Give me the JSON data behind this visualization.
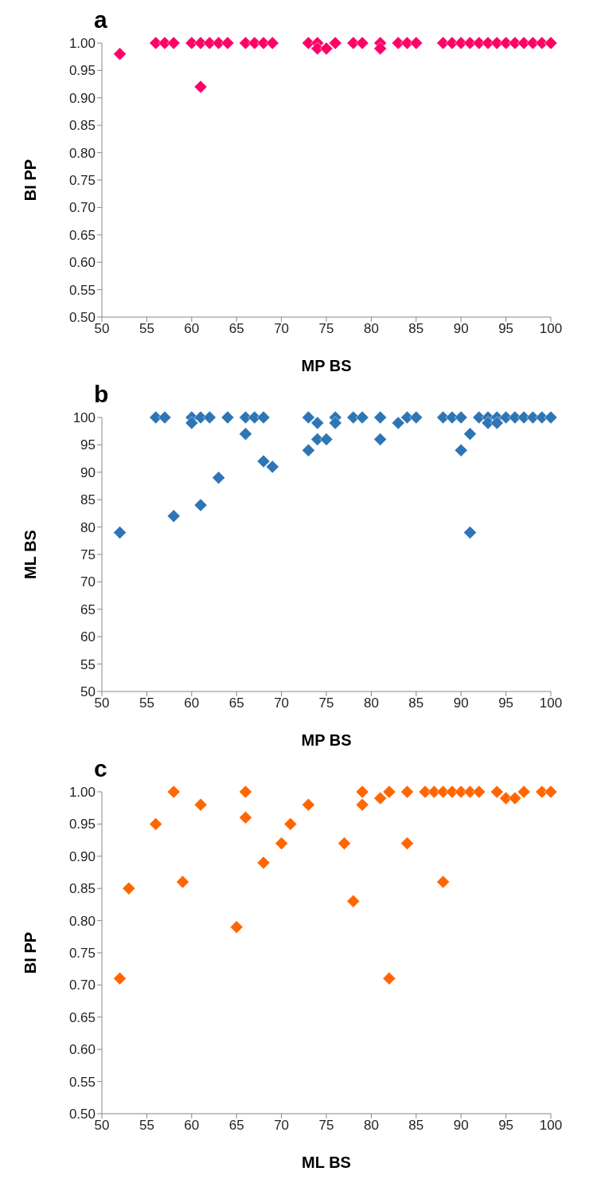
{
  "chart_data": [
    {
      "type": "scatter",
      "title": "a",
      "xlabel": "MP BS",
      "ylabel": "BI PP",
      "marker": "diamond",
      "grid": false,
      "xlim": [
        50,
        100
      ],
      "xticks": [
        50,
        55,
        60,
        65,
        70,
        75,
        80,
        85,
        90,
        95,
        100
      ],
      "ylim": [
        0.5,
        1.0
      ],
      "yticks": [
        {
          "value": 0.5,
          "label": "0.50"
        },
        {
          "value": 0.55,
          "label": "0.55"
        },
        {
          "value": 0.6,
          "label": "0.60"
        },
        {
          "value": 0.65,
          "label": "0.65"
        },
        {
          "value": 0.7,
          "label": "0.70"
        },
        {
          "value": 0.75,
          "label": "0.75"
        },
        {
          "value": 0.8,
          "label": "0.80"
        },
        {
          "value": 0.85,
          "label": "0.85"
        },
        {
          "value": 0.9,
          "label": "0.90"
        },
        {
          "value": 0.95,
          "label": "0.95"
        },
        {
          "value": 1.0,
          "label": "1.00"
        }
      ],
      "series": [
        {
          "color": "#ff0066",
          "x": [
            52,
            56,
            57,
            58,
            60,
            61,
            61,
            62,
            63,
            64,
            66,
            67,
            68,
            69,
            73,
            74,
            74,
            75,
            76,
            78,
            79,
            81,
            81,
            83,
            84,
            85,
            88,
            89,
            90,
            91,
            92,
            93,
            94,
            95,
            96,
            97,
            98,
            99,
            100
          ],
          "values": [
            0.98,
            1.0,
            1.0,
            1.0,
            1.0,
            1.0,
            0.92,
            1.0,
            1.0,
            1.0,
            1.0,
            1.0,
            1.0,
            1.0,
            1.0,
            1.0,
            0.99,
            0.99,
            1.0,
            1.0,
            1.0,
            1.0,
            0.99,
            1.0,
            1.0,
            1.0,
            1.0,
            1.0,
            1.0,
            1.0,
            1.0,
            1.0,
            1.0,
            1.0,
            1.0,
            1.0,
            1.0,
            1.0,
            1.0
          ]
        }
      ]
    },
    {
      "type": "scatter",
      "title": "b",
      "xlabel": "MP BS",
      "ylabel": "ML BS",
      "marker": "diamond",
      "grid": false,
      "xlim": [
        50,
        100
      ],
      "xticks": [
        50,
        55,
        60,
        65,
        70,
        75,
        80,
        85,
        90,
        95,
        100
      ],
      "ylim": [
        50,
        100
      ],
      "yticks": [
        50,
        55,
        60,
        65,
        70,
        75,
        80,
        85,
        90,
        95,
        100
      ],
      "series": [
        {
          "color": "#2e75b6",
          "x": [
            52,
            56,
            57,
            58,
            60,
            60,
            61,
            61,
            62,
            63,
            64,
            66,
            66,
            67,
            68,
            68,
            69,
            73,
            73,
            74,
            74,
            75,
            76,
            76,
            78,
            79,
            81,
            81,
            83,
            84,
            85,
            88,
            89,
            90,
            90,
            91,
            91,
            92,
            93,
            93,
            94,
            94,
            95,
            96,
            97,
            98,
            99,
            100
          ],
          "values": [
            79,
            100,
            100,
            82,
            100,
            99,
            84,
            100,
            100,
            89,
            100,
            100,
            97,
            100,
            100,
            92,
            91,
            100,
            94,
            99,
            96,
            96,
            100,
            99,
            100,
            100,
            100,
            96,
            99,
            100,
            100,
            100,
            100,
            100,
            94,
            97,
            79,
            100,
            100,
            99,
            100,
            99,
            100,
            100,
            100,
            100,
            100,
            100
          ]
        }
      ]
    },
    {
      "type": "scatter",
      "title": "c",
      "xlabel": "ML BS",
      "ylabel": "BI PP",
      "marker": "diamond",
      "grid": false,
      "xlim": [
        50,
        100
      ],
      "xticks": [
        50,
        55,
        60,
        65,
        70,
        75,
        80,
        85,
        90,
        95,
        100
      ],
      "ylim": [
        0.5,
        1.0
      ],
      "yticks": [
        {
          "value": 0.5,
          "label": "0.50"
        },
        {
          "value": 0.55,
          "label": "0.55"
        },
        {
          "value": 0.6,
          "label": "0.60"
        },
        {
          "value": 0.65,
          "label": "0.65"
        },
        {
          "value": 0.7,
          "label": "0.70"
        },
        {
          "value": 0.75,
          "label": "0.75"
        },
        {
          "value": 0.8,
          "label": "0.80"
        },
        {
          "value": 0.85,
          "label": "0.85"
        },
        {
          "value": 0.9,
          "label": "0.90"
        },
        {
          "value": 0.95,
          "label": "0.95"
        },
        {
          "value": 1.0,
          "label": "1.00"
        }
      ],
      "series": [
        {
          "color": "#ff6600",
          "x": [
            52,
            53,
            56,
            58,
            59,
            61,
            65,
            66,
            66,
            68,
            70,
            71,
            73,
            77,
            78,
            79,
            79,
            81,
            82,
            82,
            84,
            84,
            86,
            87,
            88,
            88,
            89,
            90,
            91,
            92,
            94,
            95,
            96,
            97,
            99,
            100
          ],
          "values": [
            0.71,
            0.85,
            0.95,
            1.0,
            0.86,
            0.98,
            0.79,
            1.0,
            0.96,
            0.89,
            0.92,
            0.95,
            0.98,
            0.92,
            0.83,
            1.0,
            0.98,
            0.99,
            1.0,
            0.71,
            1.0,
            0.92,
            1.0,
            1.0,
            1.0,
            0.86,
            1.0,
            1.0,
            1.0,
            1.0,
            1.0,
            0.99,
            0.99,
            1.0,
            1.0,
            1.0
          ]
        }
      ]
    }
  ]
}
